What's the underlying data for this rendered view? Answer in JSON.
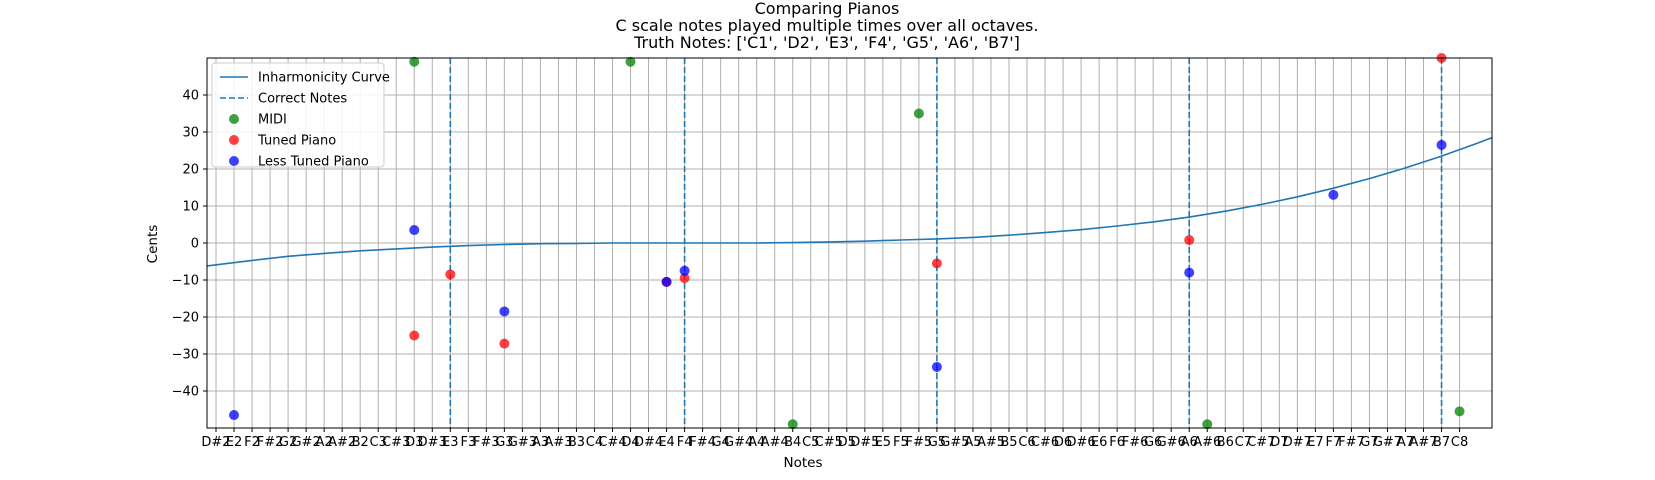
{
  "chart_data": {
    "type": "scatter",
    "title": "Comparing Pianos",
    "subtitle": "C scale notes played multiple times over all octaves.",
    "subtitle2": "Truth Notes: ['C1', 'D2', 'E3', 'F4', 'G5', 'A6', 'B7']",
    "xlabel": "Notes",
    "ylabel": "Cents",
    "ylim": [
      -50,
      50
    ],
    "xlim": [
      -0.5,
      70.8
    ],
    "yticks": [
      -40,
      -30,
      -20,
      -10,
      0,
      10,
      20,
      30,
      40
    ],
    "grid": true,
    "legend_position": "upper-left",
    "x_tick_labels": [
      "D#2",
      "E2",
      "F2",
      "F#2",
      "G2",
      "G#2",
      "A2",
      "A#2",
      "B2",
      "C3",
      "C#3",
      "D3",
      "D#3",
      "E3",
      "F3",
      "F#3",
      "G3",
      "G#3",
      "A3",
      "A#3",
      "B3",
      "C4",
      "C#4",
      "D4",
      "D#4",
      "E4",
      "F4",
      "F#4",
      "G4",
      "G#4",
      "A4",
      "A#4",
      "B4",
      "C5",
      "C#5",
      "D5",
      "D#5",
      "E5",
      "F5",
      "F#5",
      "G5",
      "G#5",
      "A5",
      "A#5",
      "B5",
      "C6",
      "C#6",
      "D6",
      "D#6",
      "E6",
      "F6",
      "F#6",
      "G6",
      "G#6",
      "A6",
      "A#6",
      "B6",
      "C7",
      "C#7",
      "D7",
      "D#7",
      "E7",
      "F7",
      "F#7",
      "G7",
      "G#7",
      "A7",
      "A#7",
      "B7",
      "C8"
    ],
    "correct_notes": [
      13,
      26,
      40,
      54,
      68
    ],
    "curve": {
      "name": "Inharmonicity Curve",
      "color": "#1f77b4",
      "x": [
        -0.5,
        2,
        4,
        6,
        8,
        10,
        12,
        14,
        16,
        18,
        20,
        22,
        24,
        26,
        28,
        30,
        32,
        34,
        36,
        38,
        40,
        42,
        44,
        46,
        48,
        50,
        52,
        54,
        56,
        58,
        60,
        62,
        64,
        66,
        68,
        70,
        70.8
      ],
      "y": [
        -6.2,
        -4.7,
        -3.6,
        -2.8,
        -2.1,
        -1.6,
        -1.1,
        -0.7,
        -0.4,
        -0.2,
        -0.1,
        0,
        0,
        0,
        0,
        0,
        0.1,
        0.3,
        0.5,
        0.8,
        1.1,
        1.5,
        2.1,
        2.8,
        3.6,
        4.6,
        5.7,
        7.0,
        8.6,
        10.4,
        12.5,
        14.8,
        17.4,
        20.3,
        23.5,
        27.0,
        28.5
      ]
    },
    "series": [
      {
        "name": "MIDI",
        "color": "#008000",
        "points": [
          [
            11,
            49
          ],
          [
            23,
            49
          ],
          [
            32,
            -49
          ],
          [
            39,
            35
          ],
          [
            55,
            -49
          ],
          [
            69,
            -45.5
          ]
        ]
      },
      {
        "name": "Tuned Piano",
        "color": "#ff0000",
        "points": [
          [
            11,
            -25
          ],
          [
            13,
            -8.5
          ],
          [
            16,
            -27.2
          ],
          [
            25,
            -10.5
          ],
          [
            26,
            -9.5
          ],
          [
            40,
            -5.5
          ],
          [
            54,
            0.8
          ],
          [
            68,
            50
          ]
        ]
      },
      {
        "name": "Less Tuned Piano",
        "color": "#0000ff",
        "points": [
          [
            11,
            3.5
          ],
          [
            16,
            -18.5
          ],
          [
            25,
            -10.5
          ],
          [
            26,
            -7.5
          ],
          [
            40,
            -33.5
          ],
          [
            54,
            -8
          ],
          [
            62,
            13
          ],
          [
            68,
            26.5
          ],
          [
            1,
            -46.5
          ]
        ]
      }
    ],
    "legend": [
      "Inharmonicity Curve",
      "Correct Notes",
      "MIDI",
      "Tuned Piano",
      "Less Tuned Piano"
    ]
  }
}
